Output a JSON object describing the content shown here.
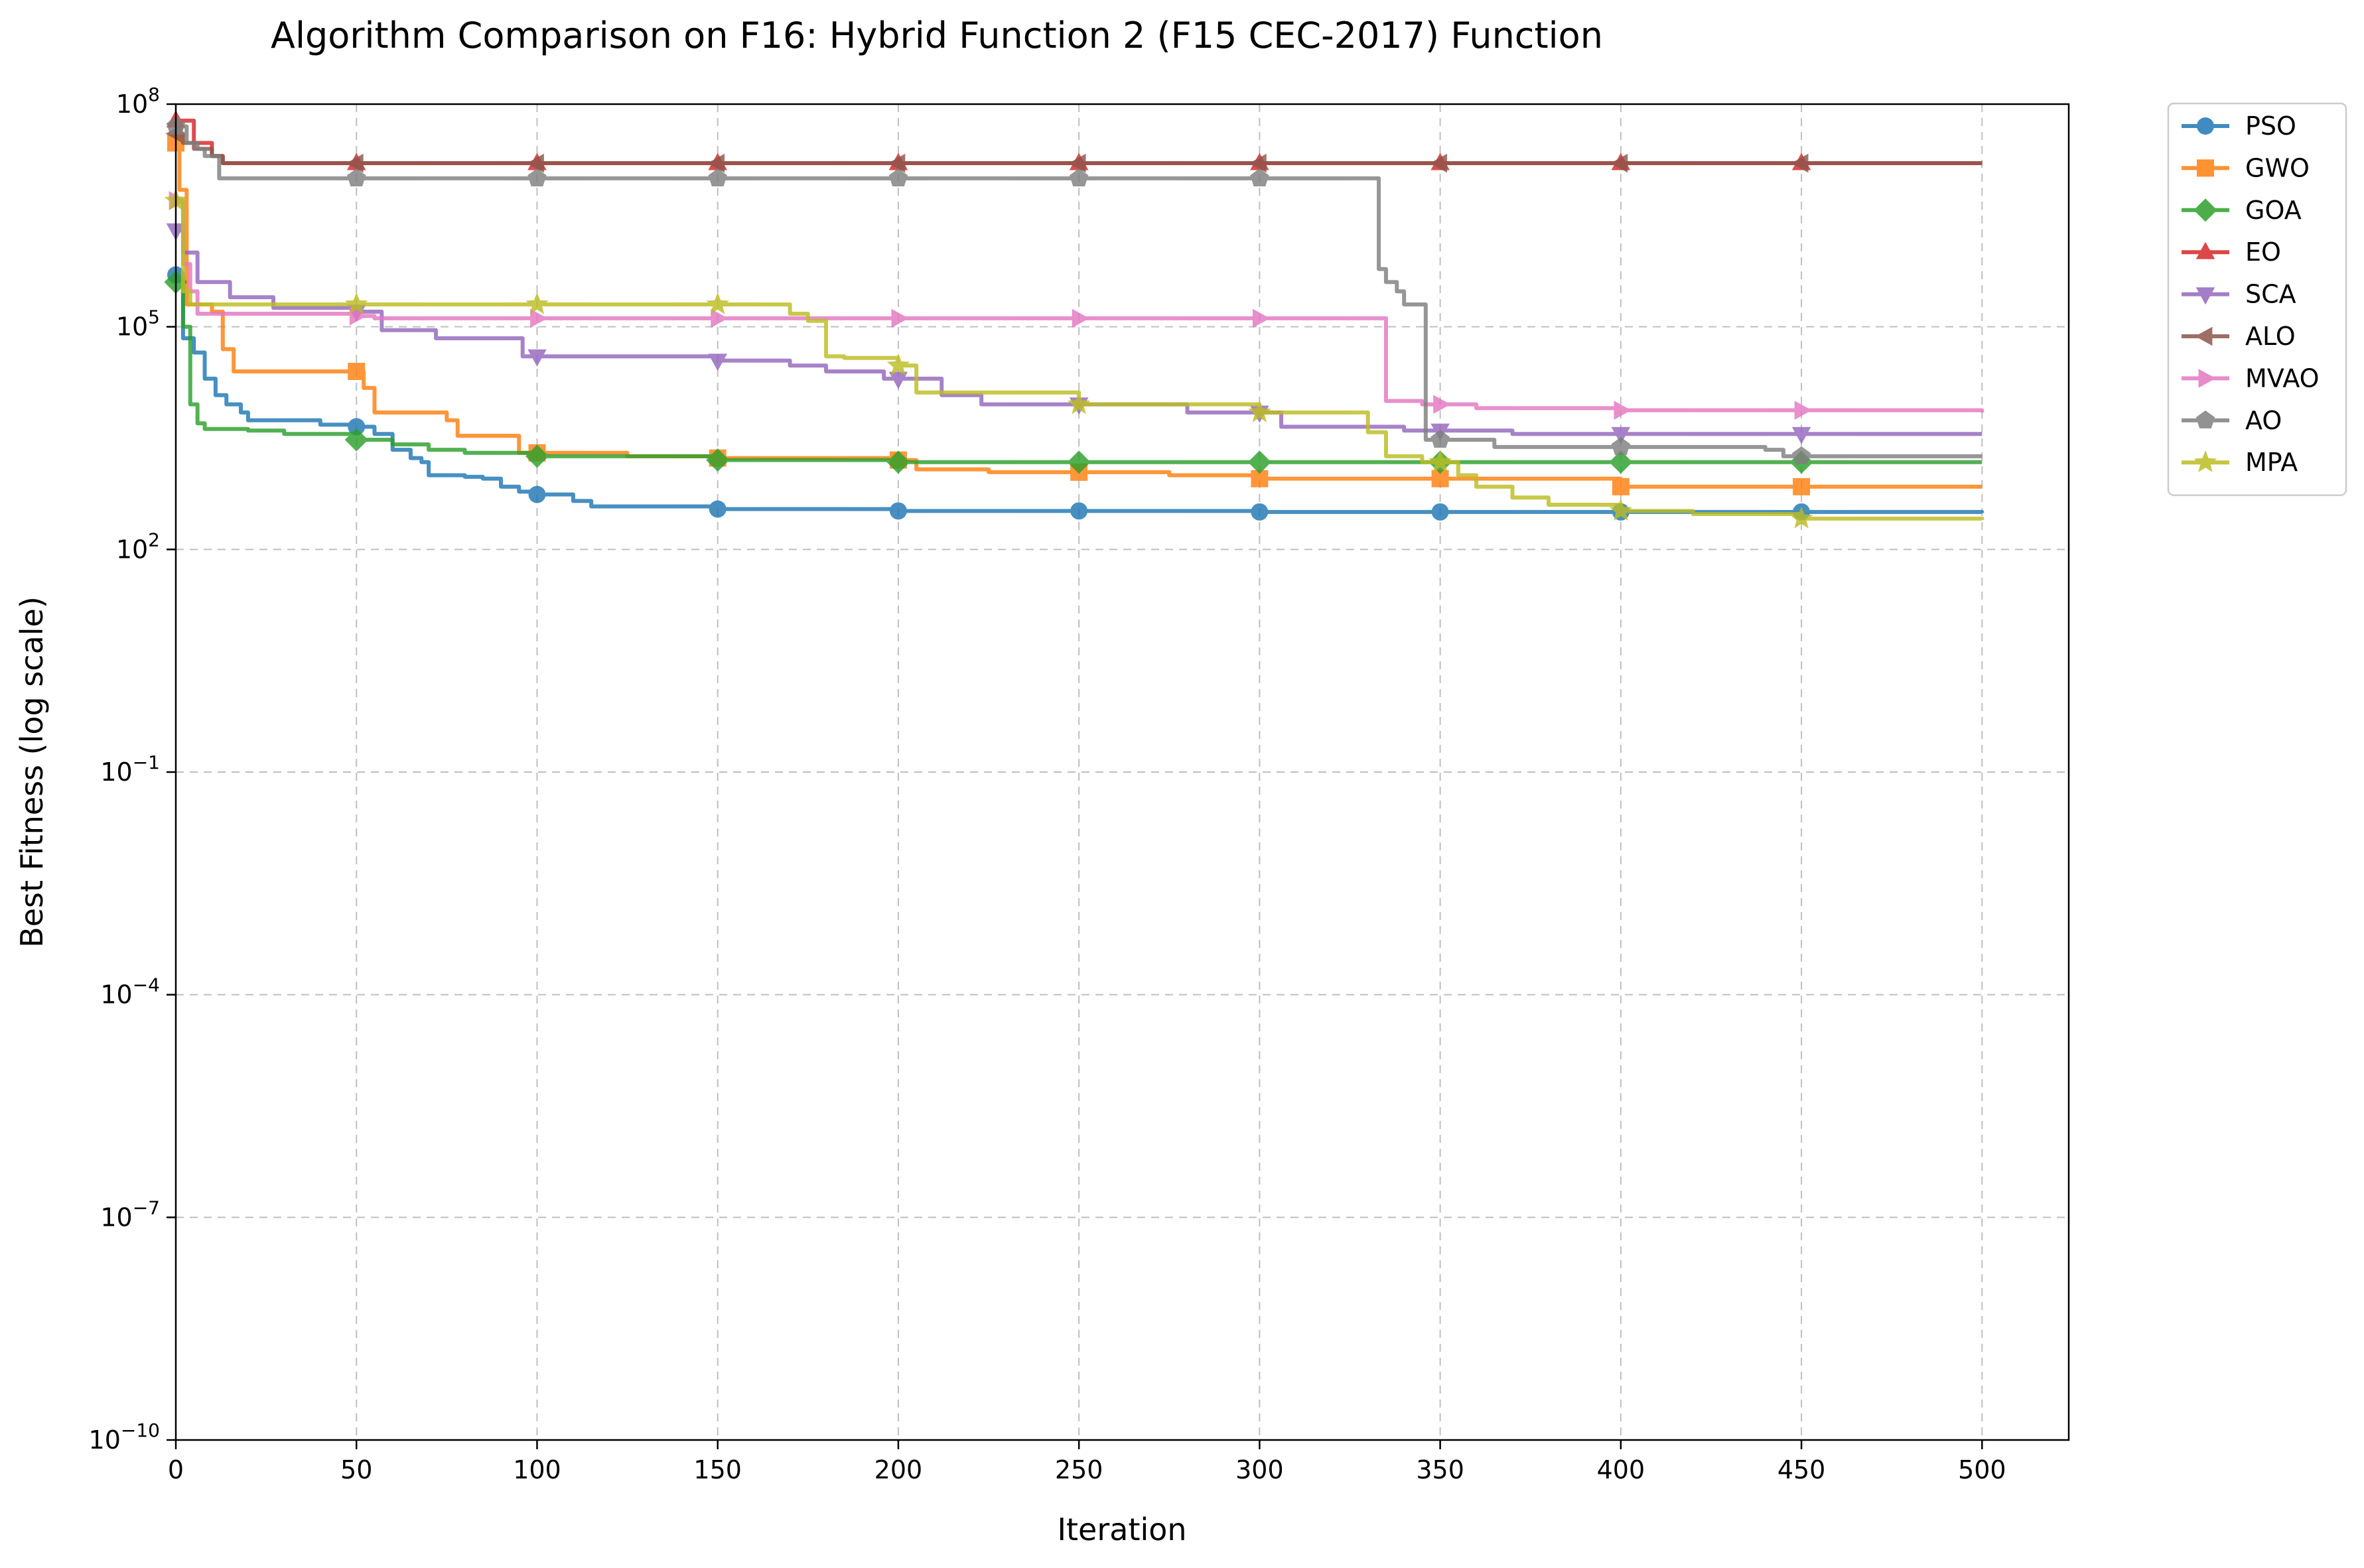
{
  "chart_data": {
    "type": "line",
    "title": "Algorithm Comparison on F16: Hybrid Function 2 (F15 CEC-2017) Function",
    "xlabel": "Iteration",
    "ylabel": "Best Fitness (log scale)",
    "xlim": [
      0,
      524
    ],
    "ylim": [
      1e-10,
      100000000.0
    ],
    "yscale": "log",
    "grid": true,
    "legend_position": "outside-top-right",
    "x_ticks": [
      0,
      50,
      100,
      150,
      200,
      250,
      300,
      350,
      400,
      450,
      500
    ],
    "x_tick_labels": [
      "0",
      "50",
      "100",
      "150",
      "200",
      "250",
      "300",
      "350",
      "400",
      "450",
      "500"
    ],
    "y_ticks": [
      1e-10,
      1e-07,
      0.0001,
      0.1,
      100,
      100000,
      100000000
    ],
    "y_tick_labels": [
      {
        "base": "10",
        "exp": "−10"
      },
      {
        "base": "10",
        "exp": "−7"
      },
      {
        "base": "10",
        "exp": "−4"
      },
      {
        "base": "10",
        "exp": "−1"
      },
      {
        "base": "10",
        "exp": "2"
      },
      {
        "base": "10",
        "exp": "5"
      },
      {
        "base": "10",
        "exp": "8"
      }
    ],
    "series": [
      {
        "name": "PSO",
        "color": "#1f77b4",
        "marker": "circle",
        "points": [
          [
            0,
            500000
          ],
          [
            2,
            70000
          ],
          [
            5,
            45000
          ],
          [
            8,
            20000
          ],
          [
            11,
            12000
          ],
          [
            14,
            9000
          ],
          [
            18,
            7000
          ],
          [
            20,
            5500
          ],
          [
            30,
            5500
          ],
          [
            40,
            4800
          ],
          [
            50,
            4500
          ],
          [
            55,
            3600
          ],
          [
            60,
            2200
          ],
          [
            65,
            1700
          ],
          [
            68,
            1500
          ],
          [
            70,
            1000
          ],
          [
            80,
            950
          ],
          [
            85,
            900
          ],
          [
            90,
            700
          ],
          [
            95,
            600
          ],
          [
            100,
            550
          ],
          [
            110,
            450
          ],
          [
            115,
            380
          ],
          [
            150,
            350
          ],
          [
            200,
            330
          ],
          [
            300,
            320
          ],
          [
            450,
            320
          ],
          [
            500,
            310
          ]
        ]
      },
      {
        "name": "GWO",
        "color": "#ff7f0e",
        "marker": "square",
        "points": [
          [
            0,
            30000000
          ],
          [
            1,
            7000000
          ],
          [
            3,
            200000
          ],
          [
            10,
            160000
          ],
          [
            13,
            50000
          ],
          [
            16,
            25000
          ],
          [
            18,
            25000
          ],
          [
            48,
            25000
          ],
          [
            52,
            15000
          ],
          [
            55,
            7000
          ],
          [
            70,
            7000
          ],
          [
            75,
            5500
          ],
          [
            78,
            3400
          ],
          [
            90,
            3400
          ],
          [
            95,
            2000
          ],
          [
            100,
            2000
          ],
          [
            125,
            1800
          ],
          [
            150,
            1700
          ],
          [
            200,
            1600
          ],
          [
            205,
            1200
          ],
          [
            225,
            1100
          ],
          [
            250,
            1100
          ],
          [
            275,
            1000
          ],
          [
            300,
            900
          ],
          [
            320,
            900
          ],
          [
            400,
            700
          ],
          [
            500,
            700
          ]
        ]
      },
      {
        "name": "GOA",
        "color": "#2ca02c",
        "marker": "diamond",
        "points": [
          [
            0,
            400000
          ],
          [
            2,
            100000
          ],
          [
            4,
            9000
          ],
          [
            6,
            5000
          ],
          [
            8,
            4200
          ],
          [
            20,
            4000
          ],
          [
            30,
            3600
          ],
          [
            50,
            3000
          ],
          [
            60,
            2600
          ],
          [
            70,
            2200
          ],
          [
            80,
            2000
          ],
          [
            100,
            1800
          ],
          [
            150,
            1600
          ],
          [
            200,
            1500
          ],
          [
            500,
            1500
          ]
        ]
      },
      {
        "name": "EO",
        "color": "#d62728",
        "marker": "triangle-up",
        "points": [
          [
            0,
            60000000
          ],
          [
            5,
            30000000
          ],
          [
            10,
            20000000
          ],
          [
            13,
            16000000
          ],
          [
            500,
            16000000
          ]
        ]
      },
      {
        "name": "SCA",
        "color": "#9467bd",
        "marker": "triangle-down",
        "points": [
          [
            0,
            2000000
          ],
          [
            2,
            1000000
          ],
          [
            5,
            1000000
          ],
          [
            6,
            400000
          ],
          [
            8,
            400000
          ],
          [
            14,
            400000
          ],
          [
            15,
            250000
          ],
          [
            26,
            250000
          ],
          [
            27,
            180000
          ],
          [
            50,
            160000
          ],
          [
            57,
            90000
          ],
          [
            70,
            90000
          ],
          [
            72,
            70000
          ],
          [
            95,
            70000
          ],
          [
            96,
            40000
          ],
          [
            110,
            40000
          ],
          [
            150,
            35000
          ],
          [
            170,
            30000
          ],
          [
            180,
            25000
          ],
          [
            190,
            25000
          ],
          [
            196,
            20000
          ],
          [
            210,
            20000
          ],
          [
            212,
            12000
          ],
          [
            220,
            12000
          ],
          [
            223,
            9000
          ],
          [
            277,
            9000
          ],
          [
            280,
            7000
          ],
          [
            305,
            7000
          ],
          [
            306,
            4500
          ],
          [
            320,
            4500
          ],
          [
            340,
            4000
          ],
          [
            370,
            3600
          ],
          [
            500,
            3600
          ]
        ]
      },
      {
        "name": "ALO",
        "color": "#8c564b",
        "marker": "triangle-left",
        "points": [
          [
            0,
            40000000
          ],
          [
            2,
            30000000
          ],
          [
            5,
            25000000
          ],
          [
            10,
            20000000
          ],
          [
            13,
            16000000
          ],
          [
            500,
            16000000
          ]
        ]
      },
      {
        "name": "MVAO",
        "color": "#e377c2",
        "marker": "triangle-right",
        "points": [
          [
            0,
            5000000
          ],
          [
            2,
            700000
          ],
          [
            4,
            300000
          ],
          [
            6,
            150000
          ],
          [
            50,
            140000
          ],
          [
            55,
            130000
          ],
          [
            90,
            130000
          ],
          [
            95,
            130000
          ],
          [
            333,
            130000
          ],
          [
            335,
            10000
          ],
          [
            340,
            10000
          ],
          [
            345,
            9000
          ],
          [
            355,
            9000
          ],
          [
            360,
            8000
          ],
          [
            400,
            7500
          ],
          [
            500,
            7000
          ]
        ]
      },
      {
        "name": "AO",
        "color": "#7f7f7f",
        "marker": "pentagon",
        "points": [
          [
            0,
            50000000
          ],
          [
            3,
            30000000
          ],
          [
            6,
            25000000
          ],
          [
            8,
            20000000
          ],
          [
            12,
            10000000
          ],
          [
            332,
            10000000
          ],
          [
            333,
            600000
          ],
          [
            335,
            400000
          ],
          [
            338,
            300000
          ],
          [
            340,
            200000
          ],
          [
            345,
            200000
          ],
          [
            346,
            3000
          ],
          [
            360,
            3000
          ],
          [
            365,
            2400
          ],
          [
            440,
            2200
          ],
          [
            445,
            1800
          ],
          [
            500,
            1800
          ]
        ]
      },
      {
        "name": "MPA",
        "color": "#bcbd22",
        "marker": "star",
        "points": [
          [
            0,
            5000000
          ],
          [
            2,
            300000
          ],
          [
            4,
            200000
          ],
          [
            50,
            200000
          ],
          [
            165,
            200000
          ],
          [
            170,
            150000
          ],
          [
            175,
            120000
          ],
          [
            180,
            40000
          ],
          [
            185,
            38000
          ],
          [
            195,
            38000
          ],
          [
            200,
            30000
          ],
          [
            205,
            13000
          ],
          [
            250,
            9000
          ],
          [
            300,
            7000
          ],
          [
            330,
            3800
          ],
          [
            335,
            1800
          ],
          [
            345,
            1500
          ],
          [
            355,
            1000
          ],
          [
            360,
            700
          ],
          [
            370,
            500
          ],
          [
            380,
            400
          ],
          [
            400,
            330
          ],
          [
            420,
            300
          ],
          [
            450,
            260
          ],
          [
            500,
            250
          ]
        ]
      }
    ]
  }
}
